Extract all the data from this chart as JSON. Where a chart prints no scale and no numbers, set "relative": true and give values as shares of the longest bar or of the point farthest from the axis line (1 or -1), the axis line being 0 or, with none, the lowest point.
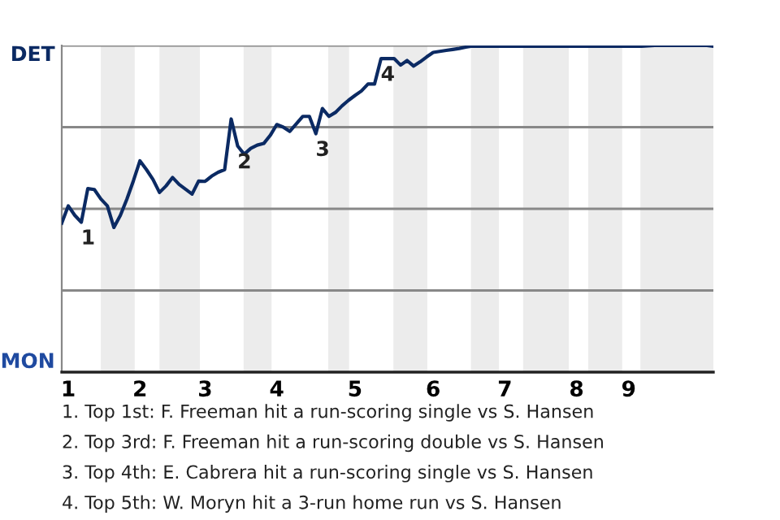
{
  "chart_data": {
    "type": "line",
    "relative": true,
    "categories": [
      null,
      "1",
      null,
      null,
      null,
      null,
      null,
      null,
      null,
      null,
      null,
      null,
      "2",
      null,
      null,
      null,
      null,
      null,
      null,
      null,
      null,
      null,
      "3",
      null,
      null,
      null,
      null,
      null,
      null,
      null,
      null,
      null,
      null,
      "4",
      null,
      null,
      null,
      null,
      null,
      null,
      null,
      null,
      null,
      null,
      null,
      "5",
      null,
      null,
      null,
      null,
      null,
      null,
      null,
      null,
      null,
      null,
      null,
      "6",
      null,
      null,
      null,
      null,
      null,
      null,
      null,
      null,
      null,
      null,
      "7",
      null,
      null,
      null,
      null,
      null,
      null,
      null,
      null,
      null,
      null,
      "8",
      null,
      null,
      null,
      null,
      null,
      null,
      null,
      "9",
      null,
      null,
      null,
      null,
      null,
      null,
      null,
      null,
      null,
      null,
      null,
      null,
      null
    ],
    "series": [
      {
        "color": "#0b2a63",
        "values": [
          0.456,
          0.509,
          0.48,
          0.459,
          0.562,
          0.559,
          0.53,
          0.509,
          0.443,
          0.48,
          0.53,
          0.586,
          0.647,
          0.62,
          0.59,
          0.55,
          0.57,
          0.596,
          0.575,
          0.56,
          0.545,
          0.585,
          0.584,
          0.6,
          0.612,
          0.62,
          0.775,
          0.692,
          0.667,
          0.685,
          0.695,
          0.7,
          0.725,
          0.758,
          0.75,
          0.737,
          0.76,
          0.783,
          0.783,
          0.73,
          0.807,
          0.783,
          0.795,
          0.815,
          0.832,
          0.847,
          0.861,
          0.882,
          0.882,
          0.96,
          0.96,
          0.96,
          0.94,
          0.954,
          0.937,
          0.95,
          0.965,
          0.979,
          0.982,
          0.985,
          0.988,
          0.991,
          0.995,
          0.998,
          0.998,
          0.998,
          0.998,
          0.998,
          0.998,
          0.998,
          0.998,
          0.998,
          0.998,
          0.998,
          0.998,
          0.998,
          0.998,
          0.998,
          0.998,
          0.998,
          0.998,
          0.998,
          0.998,
          0.998,
          0.998,
          0.998,
          0.998,
          0.998,
          0.998,
          0.998,
          0.999,
          1,
          1,
          1,
          1,
          1,
          1,
          1,
          1,
          1,
          0.998
        ]
      }
    ],
    "ref_lines": [
      {
        "axis": "y",
        "value": 0.25,
        "color": "#888888"
      },
      {
        "axis": "y",
        "value": 0.5,
        "color": "#888888"
      },
      {
        "axis": "y",
        "value": 0.75,
        "color": "#888888"
      },
      {
        "axis": "y",
        "value": 1,
        "color": "#888888"
      }
    ],
    "annotations": [
      "DET",
      "MON",
      {
        "text": "1",
        "y": 0.459
      },
      {
        "text": "2",
        "y": 0.692
      },
      {
        "text": "3",
        "y": 0.73
      },
      {
        "text": "4",
        "y": 0.96
      },
      "1. Top 1st: F. Freeman hit a run-scoring single vs S. Hansen",
      "2. Top 3rd: F. Freeman hit a run-scoring double vs S. Hansen",
      "3. Top 4th: E. Cabrera hit a run-scoring single vs S. Hansen",
      "4. Top 5th: W. Moryn hit a 3-run home run vs S. Hansen"
    ],
    "marker": "none",
    "line_style": "solid",
    "legend": false
  }
}
